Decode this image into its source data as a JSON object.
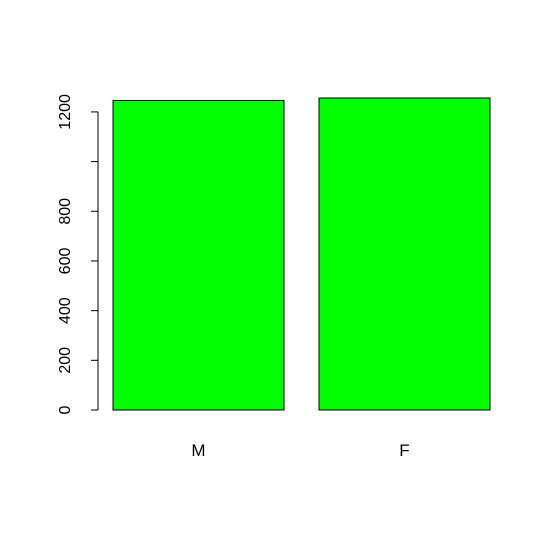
{
  "chart_data": {
    "type": "bar",
    "categories": [
      "M",
      "F"
    ],
    "values": [
      1246,
      1256
    ],
    "title": "",
    "xlabel": "",
    "ylabel": "",
    "ylim": [
      0,
      1256
    ],
    "yticks": [
      0,
      200,
      400,
      600,
      800,
      1000,
      1200
    ],
    "ytick_labels": [
      "0",
      "200",
      "400",
      "600",
      "800",
      "",
      "1200"
    ],
    "bar_color": "#00ff00",
    "bar_border_color": "#000000",
    "grid": false,
    "legend": "none"
  }
}
